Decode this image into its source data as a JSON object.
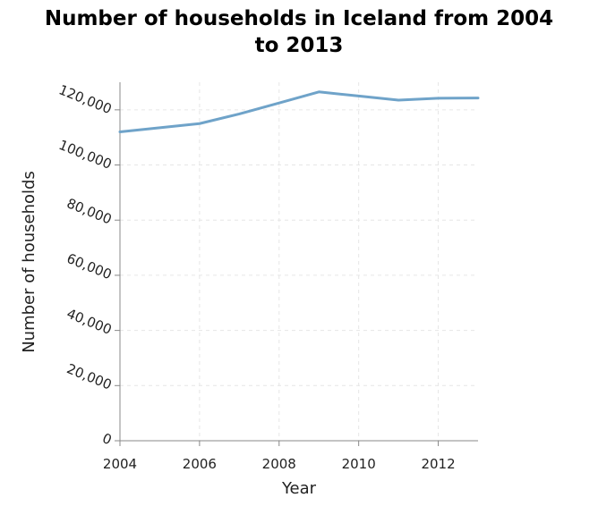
{
  "chart_data": {
    "type": "line",
    "title_line1": "Number of households in Iceland from 2004",
    "title_line2": "to 2013",
    "xlabel": "Year",
    "ylabel": "Number of households",
    "xlim": [
      2004,
      2013
    ],
    "ylim": [
      0,
      130000
    ],
    "x_ticks": [
      2004,
      2006,
      2008,
      2010,
      2012
    ],
    "x_tick_labels": [
      "2004",
      "2006",
      "2008",
      "2010",
      "2012"
    ],
    "y_ticks": [
      0,
      20000,
      40000,
      60000,
      80000,
      100000,
      120000
    ],
    "y_tick_labels": [
      "0",
      "20,000",
      "40,000",
      "60,000",
      "80,000",
      "100,000",
      "120,000"
    ],
    "grid": true,
    "series": [
      {
        "color": "#6fa3c9",
        "x": [
          2004,
          2005,
          2006,
          2007,
          2008,
          2009,
          2010,
          2011,
          2012,
          2013
        ],
        "values": [
          112000,
          113500,
          115000,
          118500,
          122500,
          126500,
          125000,
          123500,
          124200,
          124300
        ]
      }
    ]
  }
}
